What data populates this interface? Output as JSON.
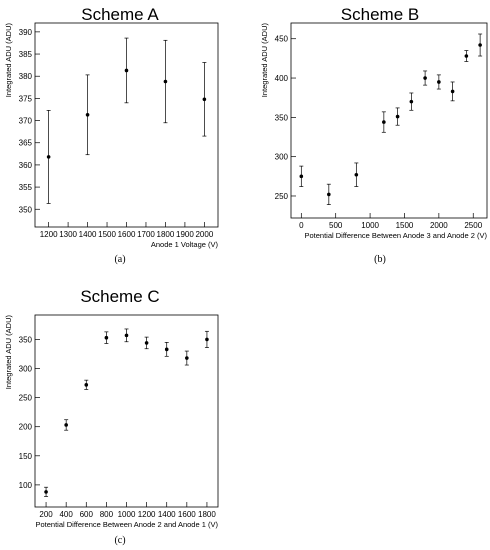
{
  "chart_data": [
    {
      "type": "scatter",
      "title": "Scheme A",
      "caption": "(a)",
      "xlabel": "Anode 1 Voltage (V)",
      "ylabel": "Integrated ADU (ADU)",
      "xlim": [
        1130,
        2070
      ],
      "ylim": [
        346,
        392
      ],
      "xticks": [
        1200,
        1300,
        1400,
        1500,
        1600,
        1700,
        1800,
        1900,
        2000
      ],
      "yticks": [
        350,
        355,
        360,
        365,
        370,
        375,
        380,
        385,
        390
      ],
      "points": [
        {
          "x": 1200,
          "y": 361.8,
          "err": 10.5
        },
        {
          "x": 1400,
          "y": 371.3,
          "err": 9.0
        },
        {
          "x": 1600,
          "y": 381.3,
          "err": 7.3
        },
        {
          "x": 1800,
          "y": 378.8,
          "err": 9.3
        },
        {
          "x": 2000,
          "y": 374.8,
          "err": 8.3
        }
      ]
    },
    {
      "type": "scatter",
      "title": "Scheme B",
      "caption": "(b)",
      "xlabel": "Potential Difference Between Anode 3 and Anode 2 (V)",
      "ylabel": "Integrated ADU (ADU)",
      "xlim": [
        -150,
        2700
      ],
      "ylim": [
        222,
        470
      ],
      "xticks": [
        0,
        500,
        1000,
        1500,
        2000,
        2500
      ],
      "yticks": [
        250,
        300,
        350,
        400,
        450
      ],
      "points": [
        {
          "x": 0,
          "y": 275,
          "err": 13
        },
        {
          "x": 400,
          "y": 252,
          "err": 13
        },
        {
          "x": 800,
          "y": 277,
          "err": 15
        },
        {
          "x": 1200,
          "y": 344,
          "err": 13
        },
        {
          "x": 1400,
          "y": 351,
          "err": 11
        },
        {
          "x": 1600,
          "y": 370,
          "err": 11
        },
        {
          "x": 1800,
          "y": 400,
          "err": 9
        },
        {
          "x": 2000,
          "y": 395,
          "err": 9
        },
        {
          "x": 2200,
          "y": 383,
          "err": 12
        },
        {
          "x": 2400,
          "y": 428,
          "err": 7
        },
        {
          "x": 2600,
          "y": 442,
          "err": 14
        }
      ]
    },
    {
      "type": "scatter",
      "title": "Scheme C",
      "caption": "(c)",
      "xlabel": "Potential Difference Between Anode 2 and Anode 1 (V)",
      "ylabel": "Integrated ADU (ADU)",
      "xlim": [
        90,
        1910
      ],
      "ylim": [
        62,
        392
      ],
      "xticks": [
        200,
        400,
        600,
        800,
        1000,
        1200,
        1400,
        1600,
        1800
      ],
      "yticks": [
        100,
        150,
        200,
        250,
        300,
        350
      ],
      "points": [
        {
          "x": 200,
          "y": 88,
          "err": 8
        },
        {
          "x": 400,
          "y": 203,
          "err": 9
        },
        {
          "x": 600,
          "y": 272,
          "err": 8
        },
        {
          "x": 800,
          "y": 353,
          "err": 10
        },
        {
          "x": 1000,
          "y": 357,
          "err": 11
        },
        {
          "x": 1200,
          "y": 344,
          "err": 10
        },
        {
          "x": 1400,
          "y": 333,
          "err": 12
        },
        {
          "x": 1600,
          "y": 318,
          "err": 12
        },
        {
          "x": 1800,
          "y": 350,
          "err": 14
        }
      ]
    }
  ]
}
